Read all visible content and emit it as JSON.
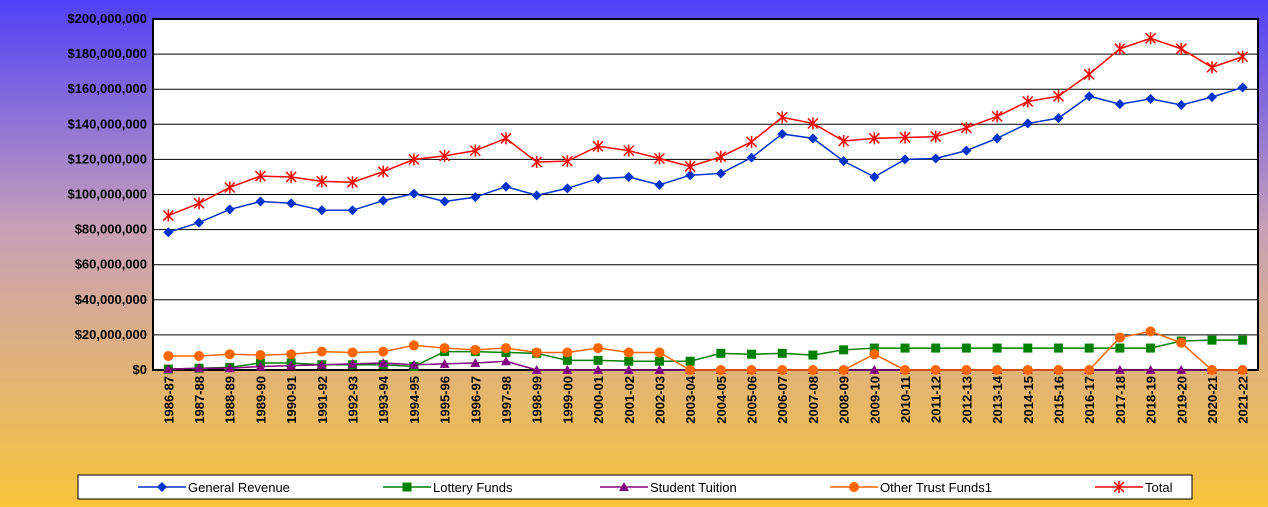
{
  "chart_data": {
    "type": "line",
    "categories": [
      "1986-87",
      "1987-88",
      "1988-89",
      "1989-90",
      "1990-91",
      "1991-92",
      "1992-93",
      "1993-94",
      "1994-95",
      "1995-96",
      "1996-97",
      "1997-98",
      "1998-99",
      "1999-00",
      "2000-01",
      "2001-02",
      "2002-03",
      "2003-04",
      "2004-05",
      "2005-06",
      "2006-07",
      "2007-08",
      "2008-09",
      "2009-10",
      "2010-11",
      "2011-12",
      "2012-13",
      "2013-14",
      "2014-15",
      "2015-16",
      "2016-17",
      "2017-18",
      "2018-19",
      "2019-20",
      "2020-21",
      "2021-22"
    ],
    "series": [
      {
        "name": "General Revenue",
        "color": "#0033cc",
        "marker": "diamond",
        "values": [
          78500000,
          84000000,
          91500000,
          96000000,
          95000000,
          91000000,
          91000000,
          96500000,
          100500000,
          96000000,
          98500000,
          104500000,
          99500000,
          103500000,
          109000000,
          110000000,
          105500000,
          111000000,
          112000000,
          121000000,
          134500000,
          132000000,
          119000000,
          110000000,
          120000000,
          120500000,
          125000000,
          132000000,
          140500000,
          143500000,
          156000000,
          151500000,
          154500000,
          151000000,
          155500000,
          161000000
        ]
      },
      {
        "name": "Lottery Funds",
        "color": "#008000",
        "marker": "square",
        "values": [
          500000,
          1000000,
          1500000,
          4000000,
          4000000,
          3000000,
          3000000,
          3000000,
          2000000,
          10500000,
          10500000,
          10000000,
          9500000,
          5500000,
          5500000,
          5000000,
          5000000,
          5000000,
          9500000,
          9000000,
          9500000,
          8500000,
          11500000,
          12500000,
          12500000,
          12500000,
          12500000,
          12500000,
          12500000,
          12500000,
          12500000,
          12500000,
          12500000,
          16500000,
          17000000,
          17000000
        ]
      },
      {
        "name": "Student Tuition",
        "color": "#800080",
        "marker": "triangle",
        "values": [
          500000,
          1000000,
          1000000,
          2000000,
          2500000,
          3000000,
          3500000,
          4000000,
          3000000,
          3500000,
          4000000,
          5000000,
          0,
          0,
          0,
          0,
          0,
          0,
          0,
          0,
          0,
          0,
          0,
          0,
          0,
          0,
          0,
          0,
          0,
          0,
          0,
          0,
          0,
          0,
          0,
          0
        ]
      },
      {
        "name": "Other Trust Funds1",
        "color": "#ff6600",
        "marker": "circle",
        "values": [
          8000000,
          8000000,
          9000000,
          8500000,
          9000000,
          10500000,
          10000000,
          10500000,
          14000000,
          12500000,
          11500000,
          12500000,
          10000000,
          10000000,
          12500000,
          10000000,
          10000000,
          0,
          0,
          0,
          0,
          0,
          0,
          9000000,
          0,
          0,
          0,
          0,
          0,
          0,
          0,
          18500000,
          22000000,
          15500000,
          0,
          0
        ]
      },
      {
        "name": "Total",
        "color": "#ff0000",
        "marker": "star",
        "values": [
          88000000,
          95000000,
          104000000,
          110500000,
          110000000,
          107500000,
          107000000,
          113000000,
          120000000,
          122000000,
          125000000,
          132000000,
          118500000,
          119000000,
          127500000,
          125000000,
          120500000,
          116000000,
          121500000,
          130000000,
          144000000,
          140500000,
          130500000,
          132000000,
          132500000,
          133000000,
          138000000,
          144500000,
          153000000,
          156000000,
          168500000,
          183000000,
          189000000,
          183000000,
          172500000,
          178500000
        ]
      }
    ],
    "ylim": [
      0,
      200000000
    ],
    "yticks": [
      {
        "value": 0,
        "label": "$0"
      },
      {
        "value": 20000000,
        "label": "$20,000,000"
      },
      {
        "value": 40000000,
        "label": "$40,000,000"
      },
      {
        "value": 60000000,
        "label": "$60,000,000"
      },
      {
        "value": 80000000,
        "label": "$80,000,000"
      },
      {
        "value": 100000000,
        "label": "$100,000,000"
      },
      {
        "value": 120000000,
        "label": "$120,000,000"
      },
      {
        "value": 140000000,
        "label": "$140,000,000"
      },
      {
        "value": 160000000,
        "label": "$160,000,000"
      },
      {
        "value": 180000000,
        "label": "$180,000,000"
      },
      {
        "value": 200000000,
        "label": "$200,000,000"
      }
    ],
    "grid": true,
    "legend": "bottom"
  }
}
